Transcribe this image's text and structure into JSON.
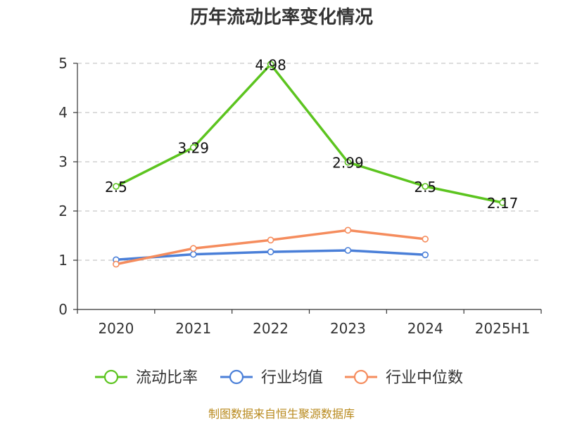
{
  "chart_data": {
    "type": "line",
    "title": "历年流动比率变化情况",
    "categories": [
      "2020",
      "2021",
      "2022",
      "2023",
      "2024",
      "2025H1"
    ],
    "ylim": [
      0,
      5
    ],
    "yticks": [
      "0",
      "1",
      "2",
      "3",
      "4",
      "5"
    ],
    "grid": true,
    "legend_placement": "bottom",
    "series": [
      {
        "name": "流动比率",
        "color": "#5cc41f",
        "values": [
          2.5,
          3.29,
          4.98,
          2.99,
          2.5,
          2.17
        ],
        "labels": [
          "2.5",
          "3.29",
          "4.98",
          "2.99",
          "2.5",
          "2.17"
        ]
      },
      {
        "name": "行业均值",
        "color": "#4a7fd8",
        "values": [
          1.01,
          1.12,
          1.17,
          1.2,
          1.11,
          null
        ]
      },
      {
        "name": "行业中位数",
        "color": "#f58c5d",
        "values": [
          0.92,
          1.24,
          1.41,
          1.61,
          1.43,
          null
        ]
      }
    ]
  },
  "source": "制图数据来自恒生聚源数据库"
}
